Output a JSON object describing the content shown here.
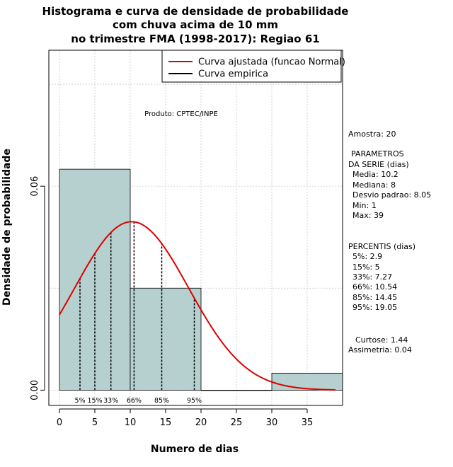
{
  "chart_data": {
    "type": "histogram",
    "title_lines": [
      "Histograma e curva de densidade de probabilidade",
      "com chuva acima de 10 mm",
      "no trimestre FMA (1998-2017): Regiao 61"
    ],
    "xlabel": "Numero de dias",
    "ylabel": "Densidade de probabilidade",
    "xlim": [
      -1.5,
      40
    ],
    "ylim": [
      -0.0045,
      0.1
    ],
    "x_ticks": [
      0,
      5,
      10,
      15,
      20,
      25,
      30,
      35
    ],
    "y_ticks": [
      0.0,
      0.06
    ],
    "y_tick_labels": [
      "0.00",
      "0.06"
    ],
    "grid": true,
    "bins": [
      {
        "start": 0,
        "end": 10,
        "density": 0.065
      },
      {
        "start": 10,
        "end": 20,
        "density": 0.03
      },
      {
        "start": 20,
        "end": 30,
        "density": 0.0
      },
      {
        "start": 30,
        "end": 40,
        "density": 0.005
      }
    ],
    "normal_curve": {
      "mean": 10.2,
      "sd": 8.05,
      "x_from": 0,
      "x_to": 39,
      "color": "#dd0000"
    },
    "percentile_lines": [
      {
        "label": "5%",
        "x": 2.9
      },
      {
        "label": "15%",
        "x": 5
      },
      {
        "label": "33%",
        "x": 7.27
      },
      {
        "label": "66%",
        "x": 10.54
      },
      {
        "label": "85%",
        "x": 14.45
      },
      {
        "label": "95%",
        "x": 19.05
      }
    ],
    "legend": {
      "position": "top-right",
      "entries": [
        {
          "label": "Curva ajustada (funcao Normal)",
          "color": "#dd0000"
        },
        {
          "label": "Curva empirica",
          "color": "#000000"
        }
      ]
    },
    "annotation": "Produto: CPTEC/INPE",
    "bar_color": "#b6cfcf"
  },
  "side_panel": {
    "amostra": "Amostra: 20",
    "params_title_1": "PARAMETROS",
    "params_title_2": "DA SERIE (dias)",
    "params": [
      "Media: 10.2",
      "Mediana: 8",
      "Desvio padrao: 8.05",
      "Min: 1",
      "Max: 39"
    ],
    "percentis_title": "PERCENTIS (dias)",
    "percentis": [
      "5%: 2.9",
      "15%: 5",
      "33%: 7.27",
      "66%: 10.54",
      "85%: 14.45",
      "95%: 19.05"
    ],
    "curtose": "Curtose: 1.44",
    "assimetria": "Assimetria: 0.04"
  }
}
